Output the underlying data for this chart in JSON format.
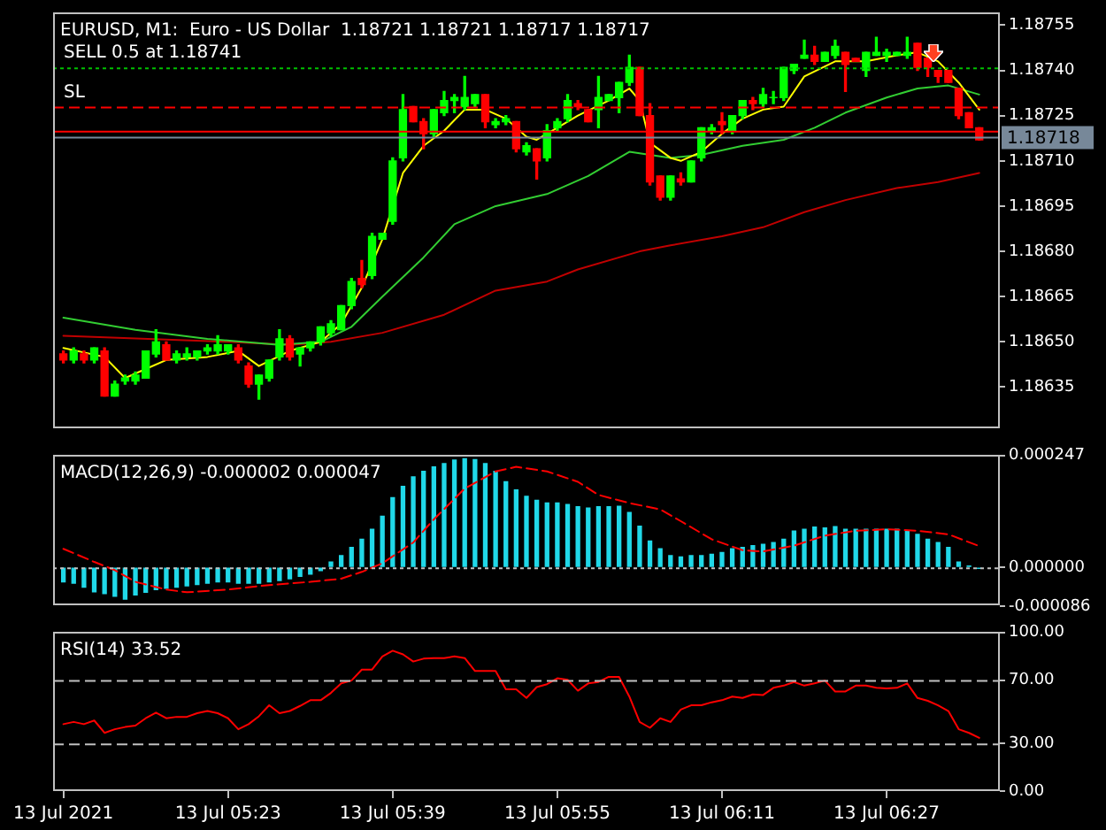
{
  "chart_data": [
    {
      "type": "candlestick",
      "title": "EURUSD, M1:  Euro - US Dollar  1.18721 1.18721 1.18717 1.18717",
      "tick_labels": "y",
      "x": [
        "2021-07-13T05:07",
        "2021-07-13T05:08",
        "2021-07-13T05:09",
        "2021-07-13T05:10",
        "2021-07-13T05:11",
        "2021-07-13T05:12",
        "2021-07-13T05:13",
        "2021-07-13T05:14",
        "2021-07-13T05:15",
        "2021-07-13T05:16",
        "2021-07-13T05:17",
        "2021-07-13T05:18",
        "2021-07-13T05:19",
        "2021-07-13T05:20",
        "2021-07-13T05:21",
        "2021-07-13T05:22",
        "2021-07-13T05:23",
        "2021-07-13T05:24",
        "2021-07-13T05:25",
        "2021-07-13T05:26",
        "2021-07-13T05:27",
        "2021-07-13T05:28",
        "2021-07-13T05:29",
        "2021-07-13T05:30",
        "2021-07-13T05:31",
        "2021-07-13T05:32",
        "2021-07-13T05:33",
        "2021-07-13T05:34",
        "2021-07-13T05:35",
        "2021-07-13T05:36",
        "2021-07-13T05:37",
        "2021-07-13T05:38",
        "2021-07-13T05:39",
        "2021-07-13T05:40",
        "2021-07-13T05:41",
        "2021-07-13T05:42",
        "2021-07-13T05:43",
        "2021-07-13T05:44",
        "2021-07-13T05:45",
        "2021-07-13T05:46",
        "2021-07-13T05:47",
        "2021-07-13T05:48",
        "2021-07-13T05:49",
        "2021-07-13T05:50",
        "2021-07-13T05:51",
        "2021-07-13T05:52",
        "2021-07-13T05:53",
        "2021-07-13T05:54",
        "2021-07-13T05:55",
        "2021-07-13T05:56",
        "2021-07-13T05:57",
        "2021-07-13T05:58",
        "2021-07-13T05:59",
        "2021-07-13T06:00",
        "2021-07-13T06:01",
        "2021-07-13T06:02",
        "2021-07-13T06:03",
        "2021-07-13T06:04",
        "2021-07-13T06:05",
        "2021-07-13T06:06",
        "2021-07-13T06:07",
        "2021-07-13T06:08",
        "2021-07-13T06:09",
        "2021-07-13T06:10",
        "2021-07-13T06:11",
        "2021-07-13T06:12",
        "2021-07-13T06:13",
        "2021-07-13T06:14",
        "2021-07-13T06:15",
        "2021-07-13T06:16",
        "2021-07-13T06:17",
        "2021-07-13T06:18",
        "2021-07-13T06:19",
        "2021-07-13T06:20",
        "2021-07-13T06:21",
        "2021-07-13T06:22",
        "2021-07-13T06:23",
        "2021-07-13T06:24",
        "2021-07-13T06:25",
        "2021-07-13T06:26",
        "2021-07-13T06:27",
        "2021-07-13T06:28",
        "2021-07-13T06:29",
        "2021-07-13T06:30",
        "2021-07-13T06:31",
        "2021-07-13T06:32",
        "2021-07-13T06:33",
        "2021-07-13T06:34",
        "2021-07-13T06:35",
        "2021-07-13T06:36"
      ],
      "ohlc": [
        [
          1.18646,
          1.18647,
          1.18643,
          1.18644
        ],
        [
          1.18644,
          1.18648,
          1.18643,
          1.18647
        ],
        [
          1.18646,
          1.18647,
          1.18643,
          1.18644
        ],
        [
          1.18644,
          1.18648,
          1.18643,
          1.18648
        ],
        [
          1.18647,
          1.18648,
          1.18632,
          1.18632
        ],
        [
          1.18632,
          1.18637,
          1.18632,
          1.18636
        ],
        [
          1.18637,
          1.18639,
          1.18636,
          1.18638
        ],
        [
          1.18637,
          1.1864,
          1.18636,
          1.18639
        ],
        [
          1.18638,
          1.18647,
          1.18638,
          1.18647
        ],
        [
          1.18646,
          1.18654,
          1.18645,
          1.1865
        ],
        [
          1.18649,
          1.1865,
          1.18644,
          1.18644
        ],
        [
          1.18644,
          1.18647,
          1.18643,
          1.18646
        ],
        [
          1.18645,
          1.18648,
          1.18644,
          1.18646
        ],
        [
          1.18645,
          1.18647,
          1.18644,
          1.18647
        ],
        [
          1.18647,
          1.18649,
          1.18646,
          1.18648
        ],
        [
          1.18647,
          1.18652,
          1.18646,
          1.18649
        ],
        [
          1.18647,
          1.18649,
          1.18646,
          1.18649
        ],
        [
          1.18648,
          1.18649,
          1.18643,
          1.18644
        ],
        [
          1.18642,
          1.18643,
          1.18635,
          1.18636
        ],
        [
          1.18636,
          1.18639,
          1.18631,
          1.18639
        ],
        [
          1.18638,
          1.18644,
          1.18637,
          1.18644
        ],
        [
          1.18645,
          1.18654,
          1.18644,
          1.18651
        ],
        [
          1.18651,
          1.18652,
          1.18644,
          1.18645
        ],
        [
          1.18646,
          1.18648,
          1.18642,
          1.18648
        ],
        [
          1.18648,
          1.1865,
          1.18647,
          1.1865
        ],
        [
          1.1865,
          1.18655,
          1.18649,
          1.18655
        ],
        [
          1.18653,
          1.18657,
          1.18652,
          1.18656
        ],
        [
          1.18654,
          1.18662,
          1.18654,
          1.18662
        ],
        [
          1.18662,
          1.18671,
          1.18661,
          1.1867
        ],
        [
          1.18671,
          1.18677,
          1.18668,
          1.18669
        ],
        [
          1.18672,
          1.18686,
          1.18671,
          1.18685
        ],
        [
          1.18684,
          1.18686,
          1.18684,
          1.18686
        ],
        [
          1.1869,
          1.18711,
          1.18689,
          1.1871
        ],
        [
          1.18711,
          1.18732,
          1.1871,
          1.18727
        ],
        [
          1.18728,
          1.18728,
          1.18723,
          1.18723
        ],
        [
          1.18723,
          1.18724,
          1.18714,
          1.18719
        ],
        [
          1.18719,
          1.18727,
          1.18718,
          1.18727
        ],
        [
          1.18726,
          1.18733,
          1.18725,
          1.1873
        ],
        [
          1.1873,
          1.18732,
          1.18726,
          1.18731
        ],
        [
          1.18728,
          1.18738,
          1.18727,
          1.18731
        ],
        [
          1.18729,
          1.18732,
          1.18728,
          1.18732
        ],
        [
          1.18732,
          1.18732,
          1.18721,
          1.18723
        ],
        [
          1.18722,
          1.18724,
          1.18721,
          1.18723
        ],
        [
          1.18723,
          1.18725,
          1.18722,
          1.18724
        ],
        [
          1.18723,
          1.18723,
          1.18713,
          1.18714
        ],
        [
          1.18713,
          1.18716,
          1.18712,
          1.18715
        ],
        [
          1.18714,
          1.18714,
          1.18704,
          1.1871
        ],
        [
          1.18711,
          1.18722,
          1.1871,
          1.1872
        ],
        [
          1.18721,
          1.18724,
          1.1872,
          1.18723
        ],
        [
          1.18724,
          1.18732,
          1.18723,
          1.1873
        ],
        [
          1.18729,
          1.1873,
          1.18727,
          1.18728
        ],
        [
          1.18727,
          1.18727,
          1.18723,
          1.18723
        ],
        [
          1.18727,
          1.18738,
          1.18721,
          1.18731
        ],
        [
          1.1873,
          1.18732,
          1.1873,
          1.18732
        ],
        [
          1.18731,
          1.18736,
          1.18726,
          1.18736
        ],
        [
          1.18736,
          1.18745,
          1.18735,
          1.18741
        ],
        [
          1.18741,
          1.18741,
          1.18725,
          1.18725
        ],
        [
          1.18725,
          1.18729,
          1.18702,
          1.18703
        ],
        [
          1.18705,
          1.18705,
          1.18697,
          1.18698
        ],
        [
          1.18698,
          1.18705,
          1.18697,
          1.18705
        ],
        [
          1.18704,
          1.18706,
          1.18702,
          1.18703
        ],
        [
          1.18703,
          1.1871,
          1.18703,
          1.1871
        ],
        [
          1.18711,
          1.18721,
          1.1871,
          1.18721
        ],
        [
          1.1872,
          1.18722,
          1.18719,
          1.18721
        ],
        [
          1.18723,
          1.18726,
          1.18719,
          1.18722
        ],
        [
          1.1872,
          1.18725,
          1.18719,
          1.18725
        ],
        [
          1.18725,
          1.1873,
          1.18724,
          1.1873
        ],
        [
          1.1873,
          1.18731,
          1.18727,
          1.18729
        ],
        [
          1.18729,
          1.18734,
          1.18728,
          1.18732
        ],
        [
          1.18731,
          1.18733,
          1.18729,
          1.18731
        ],
        [
          1.18731,
          1.18741,
          1.1873,
          1.18741
        ],
        [
          1.1874,
          1.18742,
          1.18739,
          1.18742
        ],
        [
          1.18744,
          1.1875,
          1.18744,
          1.18745
        ],
        [
          1.18745,
          1.18748,
          1.18742,
          1.18743
        ],
        [
          1.18743,
          1.18746,
          1.18743,
          1.18746
        ],
        [
          1.18745,
          1.1875,
          1.18744,
          1.18748
        ],
        [
          1.18746,
          1.18746,
          1.18733,
          1.18742
        ],
        [
          1.18744,
          1.18744,
          1.18743,
          1.18743
        ],
        [
          1.1874,
          1.18746,
          1.18738,
          1.18746
        ],
        [
          1.18745,
          1.18751,
          1.18745,
          1.18746
        ],
        [
          1.18745,
          1.18747,
          1.18743,
          1.18746
        ],
        [
          1.18745,
          1.18746,
          1.18745,
          1.18746
        ],
        [
          1.18745,
          1.18751,
          1.18744,
          1.18746
        ],
        [
          1.18749,
          1.18749,
          1.1874,
          1.18741
        ],
        [
          1.18744,
          1.18744,
          1.18738,
          1.18741
        ],
        [
          1.1874,
          1.1874,
          1.18736,
          1.18738
        ],
        [
          1.1874,
          1.1874,
          1.18736,
          1.18736
        ],
        [
          1.18734,
          1.18734,
          1.18724,
          1.18725
        ],
        [
          1.18726,
          1.18726,
          1.18721,
          1.18721
        ],
        [
          1.18721,
          1.18721,
          1.18717,
          1.18717
        ]
      ],
      "colors": [
        "#ff0000",
        "#00ff00",
        "#ff0000",
        "#00ff00",
        "#ff0000",
        "#00ff00",
        "#00ff00",
        "#00ff00",
        "#00ff00",
        "#00ff00",
        "#ff0000",
        "#00ff00",
        "#00ff00",
        "#00ff00",
        "#00ff00",
        "#00ff00",
        "#00ff00",
        "#ff0000",
        "#ff0000",
        "#00ff00",
        "#00ff00",
        "#00ff00",
        "#ff0000",
        "#00ff00",
        "#00ff00",
        "#00ff00",
        "#00ff00",
        "#00ff00",
        "#00ff00",
        "#ff0000",
        "#00ff00",
        "#00ff00",
        "#00ff00",
        "#00ff00",
        "#ff0000",
        "#ff0000",
        "#00ff00",
        "#00ff00",
        "#00ff00",
        "#00ff00",
        "#00ff00",
        "#ff0000",
        "#00ff00",
        "#00ff00",
        "#ff0000",
        "#00ff00",
        "#ff0000",
        "#00ff00",
        "#00ff00",
        "#00ff00",
        "#ff0000",
        "#ff0000",
        "#00ff00",
        "#00ff00",
        "#00ff00",
        "#00ff00",
        "#ff0000",
        "#ff0000",
        "#ff0000",
        "#00ff00",
        "#ff0000",
        "#00ff00",
        "#00ff00",
        "#00ff00",
        "#ff0000",
        "#00ff00",
        "#00ff00",
        "#ff0000",
        "#00ff00",
        "#00ff00",
        "#00ff00",
        "#00ff00",
        "#00ff00",
        "#ff0000",
        "#00ff00",
        "#00ff00",
        "#ff0000",
        "#ff0000",
        "#00ff00",
        "#00ff00",
        "#00ff00",
        "#00ff00",
        "#00ff00",
        "#ff0000",
        "#ff0000",
        "#ff0000",
        "#ff0000",
        "#ff0000",
        "#ff0000",
        "#ff0000"
      ],
      "series": [
        {
          "type": "line",
          "color": "#ffff00",
          "x": [
            "2021-07-13T05:07",
            "2021-07-13T05:11",
            "2021-07-13T05:13",
            "2021-07-13T05:15",
            "2021-07-13T05:17",
            "2021-07-13T05:21",
            "2021-07-13T05:24",
            "2021-07-13T05:26",
            "2021-07-13T05:29",
            "2021-07-13T05:32",
            "2021-07-13T05:34",
            "2021-07-13T05:36",
            "2021-07-13T05:38",
            "2021-07-13T05:40",
            "2021-07-13T05:42",
            "2021-07-13T05:44",
            "2021-07-13T05:46",
            "2021-07-13T05:48",
            "2021-07-13T05:50",
            "2021-07-13T05:52",
            "2021-07-13T05:53",
            "2021-07-13T05:55",
            "2021-07-13T05:57",
            "2021-07-13T06:00",
            "2021-07-13T06:02",
            "2021-07-13T06:03",
            "2021-07-13T06:04",
            "2021-07-13T06:06",
            "2021-07-13T06:07",
            "2021-07-13T06:09",
            "2021-07-13T06:11",
            "2021-07-13T06:13",
            "2021-07-13T06:15",
            "2021-07-13T06:17",
            "2021-07-13T06:19",
            "2021-07-13T06:22",
            "2021-07-13T06:25",
            "2021-07-13T06:28",
            "2021-07-13T06:30",
            "2021-07-13T06:32",
            "2021-07-13T06:34",
            "2021-07-13T06:36"
          ],
          "values": [
            1.18648,
            1.18645,
            1.18638,
            1.18641,
            1.18644,
            1.18645,
            1.18647,
            1.18642,
            1.18647,
            1.1865,
            1.18656,
            1.18668,
            1.18684,
            1.18706,
            1.18715,
            1.1872,
            1.18727,
            1.18727,
            1.18724,
            1.18718,
            1.18717,
            1.18721,
            1.18725,
            1.1873,
            1.18734,
            1.1873,
            1.18716,
            1.18711,
            1.1871,
            1.18713,
            1.18719,
            1.18724,
            1.18727,
            1.18728,
            1.18738,
            1.18743,
            1.18743,
            1.18745,
            1.18746,
            1.18743,
            1.18736,
            1.18727
          ]
        },
        {
          "type": "line",
          "color": "#32cd32",
          "x": [
            "2021-07-13T05:07",
            "2021-07-13T05:14",
            "2021-07-13T05:21",
            "2021-07-13T05:28",
            "2021-07-13T05:32",
            "2021-07-13T05:35",
            "2021-07-13T05:38",
            "2021-07-13T05:42",
            "2021-07-13T05:45",
            "2021-07-13T05:49",
            "2021-07-13T05:54",
            "2021-07-13T05:58",
            "2021-07-13T06:02",
            "2021-07-13T06:06",
            "2021-07-13T06:09",
            "2021-07-13T06:13",
            "2021-07-13T06:17",
            "2021-07-13T06:20",
            "2021-07-13T06:23",
            "2021-07-13T06:27",
            "2021-07-13T06:30",
            "2021-07-13T06:33",
            "2021-07-13T06:36"
          ],
          "values": [
            1.18658,
            1.18654,
            1.18651,
            1.18649,
            1.1865,
            1.18655,
            1.18665,
            1.18678,
            1.18689,
            1.18695,
            1.18699,
            1.18705,
            1.18713,
            1.18711,
            1.18712,
            1.18715,
            1.18717,
            1.18721,
            1.18726,
            1.18731,
            1.18734,
            1.18735,
            1.18732
          ]
        },
        {
          "type": "line",
          "color": "#c00000",
          "x": [
            "2021-07-13T05:07",
            "2021-07-13T05:23",
            "2021-07-13T05:29",
            "2021-07-13T05:33",
            "2021-07-13T05:38",
            "2021-07-13T05:44",
            "2021-07-13T05:49",
            "2021-07-13T05:54",
            "2021-07-13T05:57",
            "2021-07-13T06:03",
            "2021-07-13T06:06",
            "2021-07-13T06:11",
            "2021-07-13T06:15",
            "2021-07-13T06:19",
            "2021-07-13T06:23",
            "2021-07-13T06:28",
            "2021-07-13T06:32",
            "2021-07-13T06:36"
          ],
          "values": [
            1.18652,
            1.1865,
            1.18649,
            1.1865,
            1.18653,
            1.18659,
            1.18667,
            1.1867,
            1.18674,
            1.1868,
            1.18682,
            1.18685,
            1.18688,
            1.18693,
            1.18697,
            1.18701,
            1.18703,
            1.18706
          ]
        }
      ],
      "xlim": [
        "2021-07-13T05:06",
        "2021-07-13T06:38"
      ],
      "ylim": [
        1.18621,
        1.18759
      ],
      "yticks": [
        {
          "value": 1.18635,
          "label": "1.18635"
        },
        {
          "value": 1.1865,
          "label": "1.18650"
        },
        {
          "value": 1.18665,
          "label": "1.18665"
        },
        {
          "value": 1.1868,
          "label": "1.18680"
        },
        {
          "value": 1.18695,
          "label": "1.18695"
        },
        {
          "value": 1.1871,
          "label": "1.18710"
        },
        {
          "value": 1.18725,
          "label": "1.18725"
        },
        {
          "value": 1.1874,
          "label": "1.18740"
        },
        {
          "value": 1.18755,
          "label": "1.18755"
        }
      ],
      "ref_lines": [
        {
          "axis": "y",
          "value": 1.18741,
          "label": "SELL 0.5 at 1.18741",
          "color": "#00c000",
          "line_style": "dotted"
        },
        {
          "axis": "y",
          "value": 1.18728,
          "label": "SL",
          "color": "#ff0000",
          "line_style": "dashed"
        },
        {
          "axis": "y",
          "value": 1.1872,
          "color": "#ff0000",
          "line_style": "solid"
        },
        {
          "axis": "y",
          "value": 1.18718,
          "label": "1.18718",
          "color": "#778899",
          "line_style": "solid"
        }
      ]
    },
    {
      "type": "bar",
      "title": "MACD(12,26,9) -0.000002 0.000047",
      "tick_labels": "y",
      "x": [
        "2021-07-13T05:07",
        "2021-07-13T05:08",
        "2021-07-13T05:09",
        "2021-07-13T05:10",
        "2021-07-13T05:11",
        "2021-07-13T05:12",
        "2021-07-13T05:13",
        "2021-07-13T05:14",
        "2021-07-13T05:15",
        "2021-07-13T05:16",
        "2021-07-13T05:17",
        "2021-07-13T05:18",
        "2021-07-13T05:19",
        "2021-07-13T05:20",
        "2021-07-13T05:21",
        "2021-07-13T05:22",
        "2021-07-13T05:23",
        "2021-07-13T05:24",
        "2021-07-13T05:25",
        "2021-07-13T05:26",
        "2021-07-13T05:27",
        "2021-07-13T05:28",
        "2021-07-13T05:29",
        "2021-07-13T05:30",
        "2021-07-13T05:31",
        "2021-07-13T05:32",
        "2021-07-13T05:33",
        "2021-07-13T05:34",
        "2021-07-13T05:35",
        "2021-07-13T05:36",
        "2021-07-13T05:37",
        "2021-07-13T05:38",
        "2021-07-13T05:39",
        "2021-07-13T05:40",
        "2021-07-13T05:41",
        "2021-07-13T05:42",
        "2021-07-13T05:43",
        "2021-07-13T05:44",
        "2021-07-13T05:45",
        "2021-07-13T05:46",
        "2021-07-13T05:47",
        "2021-07-13T05:48",
        "2021-07-13T05:49",
        "2021-07-13T05:50",
        "2021-07-13T05:51",
        "2021-07-13T05:52",
        "2021-07-13T05:53",
        "2021-07-13T05:54",
        "2021-07-13T05:55",
        "2021-07-13T05:56",
        "2021-07-13T05:57",
        "2021-07-13T05:58",
        "2021-07-13T05:59",
        "2021-07-13T06:00",
        "2021-07-13T06:01",
        "2021-07-13T06:02",
        "2021-07-13T06:03",
        "2021-07-13T06:04",
        "2021-07-13T06:05",
        "2021-07-13T06:06",
        "2021-07-13T06:07",
        "2021-07-13T06:08",
        "2021-07-13T06:09",
        "2021-07-13T06:10",
        "2021-07-13T06:11",
        "2021-07-13T06:12",
        "2021-07-13T06:13",
        "2021-07-13T06:14",
        "2021-07-13T06:15",
        "2021-07-13T06:16",
        "2021-07-13T06:17",
        "2021-07-13T06:18",
        "2021-07-13T06:19",
        "2021-07-13T06:20",
        "2021-07-13T06:21",
        "2021-07-13T06:22",
        "2021-07-13T06:23",
        "2021-07-13T06:24",
        "2021-07-13T06:25",
        "2021-07-13T06:26",
        "2021-07-13T06:27",
        "2021-07-13T06:28",
        "2021-07-13T06:29",
        "2021-07-13T06:30",
        "2021-07-13T06:31",
        "2021-07-13T06:32",
        "2021-07-13T06:33",
        "2021-07-13T06:34",
        "2021-07-13T06:35",
        "2021-07-13T06:36"
      ],
      "series": [
        {
          "type": "bar",
          "color": "#20d8e8",
          "values": [
            -3.2e-05,
            -3.5e-05,
            -4.4e-05,
            -5.4e-05,
            -5.8e-05,
            -6.4e-05,
            -7e-05,
            -6.1e-05,
            -5.5e-05,
            -4.9e-05,
            -4.6e-05,
            -4.4e-05,
            -4.1e-05,
            -3.8e-05,
            -3.5e-05,
            -3.2e-05,
            -3.2e-05,
            -3.5e-05,
            -3.5e-05,
            -3.5e-05,
            -3.2e-05,
            -2.9e-05,
            -2.5e-05,
            -2e-05,
            -1.5e-05,
            -7e-06,
            1.2e-05,
            2.6e-05,
            4.4e-05,
            6.2e-05,
            8.4e-05,
            0.000113,
            0.000154,
            0.000179,
            0.0002,
            0.000212,
            0.000222,
            0.000229,
            0.000237,
            0.00024,
            0.000238,
            0.000229,
            0.000212,
            0.000189,
            0.000171,
            0.000157,
            0.000148,
            0.000142,
            0.000142,
            0.000139,
            0.000134,
            0.000131,
            0.000134,
            0.000134,
            0.000135,
            0.000121,
            9.1e-05,
            5.8e-05,
            4.1e-05,
            2.6e-05,
            2.3e-05,
            2.6e-05,
            2.6e-05,
            2.9e-05,
            3.3e-05,
            4.1e-05,
            4.4e-05,
            4.8e-05,
            5.1e-05,
            5.5e-05,
            6.2e-05,
            8e-05,
            8.4e-05,
            8.9e-05,
            8.7e-05,
            9e-05,
            8.4e-05,
            8.4e-05,
            8.4e-05,
            8.4e-05,
            8.4e-05,
            8.4e-05,
            8e-05,
            7.3e-05,
            6.2e-05,
            5.5e-05,
            4.4e-05,
            1.2e-05,
            3e-06,
            -2e-06
          ]
        },
        {
          "type": "line",
          "color": "#ff0000",
          "line_style": "dashed",
          "x": [
            "2021-07-13T05:07",
            "2021-07-13T05:10",
            "2021-07-13T05:12",
            "2021-07-13T05:14",
            "2021-07-13T05:17",
            "2021-07-13T05:19",
            "2021-07-13T05:23",
            "2021-07-13T05:27",
            "2021-07-13T05:31",
            "2021-07-13T05:34",
            "2021-07-13T05:36",
            "2021-07-13T05:38",
            "2021-07-13T05:41",
            "2021-07-13T05:43",
            "2021-07-13T05:46",
            "2021-07-13T05:49",
            "2021-07-13T05:51",
            "2021-07-13T05:54",
            "2021-07-13T05:57",
            "2021-07-13T05:59",
            "2021-07-13T06:02",
            "2021-07-13T06:05",
            "2021-07-13T06:07",
            "2021-07-13T06:10",
            "2021-07-13T06:13",
            "2021-07-13T06:15",
            "2021-07-13T06:18",
            "2021-07-13T06:21",
            "2021-07-13T06:24",
            "2021-07-13T06:27",
            "2021-07-13T06:30",
            "2021-07-13T06:33",
            "2021-07-13T06:36"
          ],
          "values": [
            4.1e-05,
            1.2e-05,
            -6e-06,
            -3.2e-05,
            -4.9e-05,
            -5.5e-05,
            -4.9e-05,
            -3.9e-05,
            -3.2e-05,
            -2.5e-05,
            -1e-05,
            9e-06,
            5.5e-05,
            0.000106,
            0.000174,
            0.000212,
            0.000222,
            0.000212,
            0.000189,
            0.00016,
            0.000142,
            0.000128,
            0.000102,
            6.2e-05,
            3.8e-05,
            3.5e-05,
            4.8e-05,
            7e-05,
            8.1e-05,
            8.4e-05,
            8.1e-05,
            7.3e-05,
            4.7e-05
          ]
        }
      ],
      "xlim": [
        "2021-07-13T05:06",
        "2021-07-13T06:38"
      ],
      "ylim": [
        -8.6e-05,
        0.000247
      ],
      "yticks": [
        {
          "value": -8.6e-05,
          "label": "-0.000086"
        },
        {
          "value": 0,
          "label": "0.000000"
        },
        {
          "value": 0.000247,
          "label": "0.000247"
        }
      ],
      "ref_lines": [
        {
          "axis": "y",
          "value": 0,
          "color": "#c0c0c0",
          "line_style": "dotted"
        }
      ]
    },
    {
      "type": "line",
      "title": "RSI(14) 33.52",
      "x": [
        "2021-07-13T05:07",
        "2021-07-13T05:08",
        "2021-07-13T05:09",
        "2021-07-13T05:10",
        "2021-07-13T05:11",
        "2021-07-13T05:12",
        "2021-07-13T05:13",
        "2021-07-13T05:14",
        "2021-07-13T05:15",
        "2021-07-13T05:16",
        "2021-07-13T05:17",
        "2021-07-13T05:18",
        "2021-07-13T05:19",
        "2021-07-13T05:20",
        "2021-07-13T05:21",
        "2021-07-13T05:22",
        "2021-07-13T05:23",
        "2021-07-13T05:24",
        "2021-07-13T05:25",
        "2021-07-13T05:26",
        "2021-07-13T05:27",
        "2021-07-13T05:28",
        "2021-07-13T05:29",
        "2021-07-13T05:30",
        "2021-07-13T05:31",
        "2021-07-13T05:32",
        "2021-07-13T05:33",
        "2021-07-13T05:34",
        "2021-07-13T05:35",
        "2021-07-13T05:36",
        "2021-07-13T05:37",
        "2021-07-13T05:38",
        "2021-07-13T05:39",
        "2021-07-13T05:40",
        "2021-07-13T05:41",
        "2021-07-13T05:42",
        "2021-07-13T05:43",
        "2021-07-13T05:44",
        "2021-07-13T05:45",
        "2021-07-13T05:46",
        "2021-07-13T05:47",
        "2021-07-13T05:48",
        "2021-07-13T05:49",
        "2021-07-13T05:50",
        "2021-07-13T05:51",
        "2021-07-13T05:52",
        "2021-07-13T05:53",
        "2021-07-13T05:54",
        "2021-07-13T05:55",
        "2021-07-13T05:56",
        "2021-07-13T05:57",
        "2021-07-13T05:58",
        "2021-07-13T05:59",
        "2021-07-13T06:00",
        "2021-07-13T06:01",
        "2021-07-13T06:02",
        "2021-07-13T06:03",
        "2021-07-13T06:04",
        "2021-07-13T06:05",
        "2021-07-13T06:06",
        "2021-07-13T06:07",
        "2021-07-13T06:08",
        "2021-07-13T06:09",
        "2021-07-13T06:10",
        "2021-07-13T06:11",
        "2021-07-13T06:12",
        "2021-07-13T06:13",
        "2021-07-13T06:14",
        "2021-07-13T06:15",
        "2021-07-13T06:16",
        "2021-07-13T06:17",
        "2021-07-13T06:18",
        "2021-07-13T06:19",
        "2021-07-13T06:20",
        "2021-07-13T06:21",
        "2021-07-13T06:22",
        "2021-07-13T06:23",
        "2021-07-13T06:24",
        "2021-07-13T06:25",
        "2021-07-13T06:26",
        "2021-07-13T06:27",
        "2021-07-13T06:28",
        "2021-07-13T06:29",
        "2021-07-13T06:30",
        "2021-07-13T06:31",
        "2021-07-13T06:32",
        "2021-07-13T06:33",
        "2021-07-13T06:34",
        "2021-07-13T06:35",
        "2021-07-13T06:36"
      ],
      "series": [
        {
          "color": "#ff0000",
          "values": [
            42.2,
            43.6,
            42.2,
            44.5,
            36.7,
            39,
            40.4,
            41.3,
            45.9,
            49.5,
            45.9,
            46.8,
            46.8,
            49.1,
            50.5,
            49.1,
            45.9,
            39,
            42.2,
            47.2,
            54.1,
            49.1,
            50.5,
            53.7,
            57.3,
            57.3,
            61.9,
            67.9,
            69.7,
            76.6,
            76.6,
            84.9,
            88.5,
            86.2,
            81.7,
            83.5,
            83.9,
            83.9,
            84.9,
            83.9,
            75.7,
            75.7,
            75.7,
            64.2,
            64.2,
            58.7,
            65.6,
            67.4,
            71.1,
            70.2,
            63.3,
            67.9,
            68.8,
            72,
            72,
            59.6,
            43.6,
            39.9,
            45.9,
            43.6,
            51.4,
            54.1,
            54.1,
            56,
            57.3,
            59.6,
            58.7,
            61,
            60.6,
            65.1,
            66.5,
            68.8,
            66.5,
            67.9,
            69.7,
            62.8,
            62.8,
            66.5,
            66.5,
            65.1,
            64.7,
            65.1,
            67.9,
            58.7,
            56.9,
            54.1,
            50.5,
            39,
            36.7,
            33.52
          ]
        }
      ],
      "xlim": [
        "2021-07-13T05:06",
        "2021-07-13T06:38"
      ],
      "xticks": [
        {
          "value": "2021-07-13T05:07",
          "label": "13 Jul 2021"
        },
        {
          "value": "2021-07-13T05:23",
          "label": "13 Jul 05:23"
        },
        {
          "value": "2021-07-13T05:39",
          "label": "13 Jul 05:39"
        },
        {
          "value": "2021-07-13T05:55",
          "label": "13 Jul 05:55"
        },
        {
          "value": "2021-07-13T06:11",
          "label": "13 Jul 06:11"
        },
        {
          "value": "2021-07-13T06:27",
          "label": "13 Jul 06:27"
        }
      ],
      "ylim": [
        0,
        100
      ],
      "yticks": [
        {
          "value": 0,
          "label": "0.00"
        },
        {
          "value": 30,
          "label": "30.00"
        },
        {
          "value": 70,
          "label": "70.00"
        },
        {
          "value": 100,
          "label": "100.00"
        }
      ],
      "ref_lines": [
        {
          "axis": "y",
          "value": 70,
          "color": "#c0c0c0",
          "line_style": "dashed"
        },
        {
          "axis": "y",
          "value": 30,
          "color": "#c0c0c0",
          "line_style": "dashed"
        }
      ]
    }
  ]
}
